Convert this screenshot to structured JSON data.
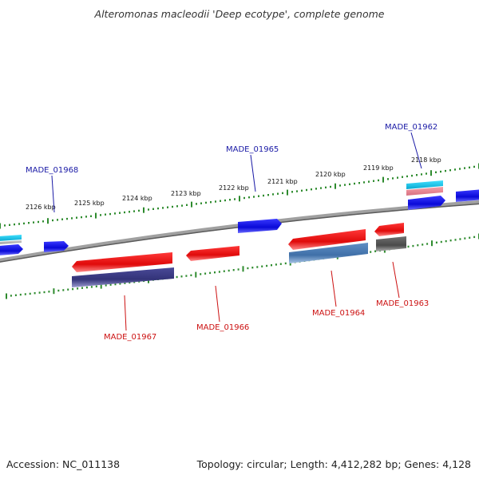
{
  "title": "Alteromonas macleodii 'Deep ecotype', complete genome",
  "footer": {
    "accession": "Accession: NC_011138",
    "summary": "Topology: circular; Length: 4,412,282 bp; Genes: 4,128"
  },
  "scale_ticks": [
    {
      "label": "2126 kbp"
    },
    {
      "label": "2125 kbp"
    },
    {
      "label": "2124 kbp"
    },
    {
      "label": "2123 kbp"
    },
    {
      "label": "2122 kbp"
    },
    {
      "label": "2121 kbp"
    },
    {
      "label": "2120 kbp"
    },
    {
      "label": "2119 kbp"
    },
    {
      "label": "2118 kbp"
    }
  ],
  "gene_labels": {
    "forward": [
      "MADE_01968",
      "MADE_01965",
      "MADE_01962"
    ],
    "reverse": [
      "MADE_01967",
      "MADE_01966",
      "MADE_01964",
      "MADE_01963"
    ]
  },
  "colors": {
    "forward_label": "#1a1aa6",
    "reverse_label": "#cc1111",
    "backbone": "#8a8a8a",
    "tick_track": "#2e8b2e",
    "gene_blue": "#1010e0",
    "gene_red": "#ee1111",
    "gene_navy": "#3a3a80",
    "gene_steel": "#4f7fb5",
    "gene_cyan": "#12c8e8",
    "gene_pink": "#e8868f",
    "gene_gray": "#5a5a5a"
  }
}
